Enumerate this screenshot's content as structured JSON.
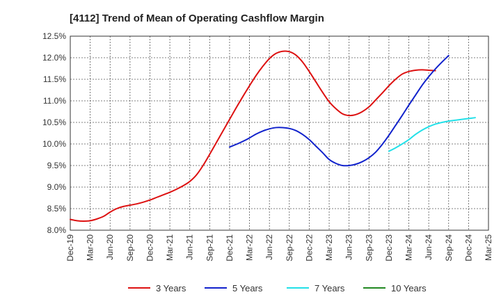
{
  "chart_data": {
    "type": "line",
    "title": "[4112]  Trend of Mean of Operating Cashflow Margin",
    "xlabel": "",
    "ylabel": "",
    "x_ticks": [
      "Dec-19",
      "Mar-20",
      "Jun-20",
      "Sep-20",
      "Dec-20",
      "Mar-21",
      "Jun-21",
      "Sep-21",
      "Dec-21",
      "Mar-22",
      "Jun-22",
      "Sep-22",
      "Dec-22",
      "Mar-23",
      "Jun-23",
      "Sep-23",
      "Dec-23",
      "Mar-24",
      "Jun-24",
      "Sep-24",
      "Dec-24",
      "Mar-25"
    ],
    "y_ticks": [
      "8.0%",
      "8.5%",
      "9.0%",
      "9.5%",
      "10.0%",
      "10.5%",
      "11.0%",
      "11.5%",
      "12.0%",
      "12.5%"
    ],
    "ylim": [
      8.0,
      12.5
    ],
    "grid": true,
    "legend_position": "bottom",
    "series": [
      {
        "name": "3 Years",
        "color": "#dd1111",
        "points": [
          [
            "Dec-19",
            8.25
          ],
          [
            "Jan-20",
            8.22
          ],
          [
            "Feb-20",
            8.21
          ],
          [
            "Mar-20",
            8.22
          ],
          [
            "Apr-20",
            8.26
          ],
          [
            "May-20",
            8.32
          ],
          [
            "Jun-20",
            8.42
          ],
          [
            "Jul-20",
            8.5
          ],
          [
            "Aug-20",
            8.55
          ],
          [
            "Sep-20",
            8.58
          ],
          [
            "Oct-20",
            8.61
          ],
          [
            "Nov-20",
            8.65
          ],
          [
            "Dec-20",
            8.7
          ],
          [
            "Jan-21",
            8.76
          ],
          [
            "Feb-21",
            8.82
          ],
          [
            "Mar-21",
            8.88
          ],
          [
            "Apr-21",
            8.95
          ],
          [
            "May-21",
            9.03
          ],
          [
            "Jun-21",
            9.13
          ],
          [
            "Jul-21",
            9.28
          ],
          [
            "Aug-21",
            9.5
          ],
          [
            "Sep-21",
            9.76
          ],
          [
            "Oct-21",
            10.03
          ],
          [
            "Nov-21",
            10.3
          ],
          [
            "Dec-21",
            10.57
          ],
          [
            "Jan-22",
            10.84
          ],
          [
            "Feb-22",
            11.1
          ],
          [
            "Mar-22",
            11.35
          ],
          [
            "Apr-22",
            11.59
          ],
          [
            "May-22",
            11.8
          ],
          [
            "Jun-22",
            11.98
          ],
          [
            "Jul-22",
            12.1
          ],
          [
            "Aug-22",
            12.15
          ],
          [
            "Sep-22",
            12.14
          ],
          [
            "Oct-22",
            12.06
          ],
          [
            "Nov-22",
            11.9
          ],
          [
            "Dec-22",
            11.68
          ],
          [
            "Jan-23",
            11.44
          ],
          [
            "Feb-23",
            11.2
          ],
          [
            "Mar-23",
            10.98
          ],
          [
            "Apr-23",
            10.82
          ],
          [
            "May-23",
            10.7
          ],
          [
            "Jun-23",
            10.66
          ],
          [
            "Jul-23",
            10.68
          ],
          [
            "Aug-23",
            10.75
          ],
          [
            "Sep-23",
            10.86
          ],
          [
            "Oct-23",
            11.02
          ],
          [
            "Nov-23",
            11.18
          ],
          [
            "Dec-23",
            11.35
          ],
          [
            "Jan-24",
            11.5
          ],
          [
            "Feb-24",
            11.62
          ],
          [
            "Mar-24",
            11.68
          ],
          [
            "Apr-24",
            11.71
          ],
          [
            "May-24",
            11.72
          ],
          [
            "Jun-24",
            11.71
          ],
          [
            "Jul-24",
            11.7
          ]
        ]
      },
      {
        "name": "5 Years",
        "color": "#1122cc",
        "points": [
          [
            "Dec-21",
            9.93
          ],
          [
            "Jan-22",
            9.99
          ],
          [
            "Feb-22",
            10.06
          ],
          [
            "Mar-22",
            10.14
          ],
          [
            "Apr-22",
            10.23
          ],
          [
            "May-22",
            10.3
          ],
          [
            "Jun-22",
            10.35
          ],
          [
            "Jul-22",
            10.38
          ],
          [
            "Aug-22",
            10.38
          ],
          [
            "Sep-22",
            10.36
          ],
          [
            "Oct-22",
            10.31
          ],
          [
            "Nov-22",
            10.22
          ],
          [
            "Dec-22",
            10.1
          ],
          [
            "Jan-23",
            9.95
          ],
          [
            "Feb-23",
            9.8
          ],
          [
            "Mar-23",
            9.64
          ],
          [
            "Apr-23",
            9.55
          ],
          [
            "May-23",
            9.5
          ],
          [
            "Jun-23",
            9.5
          ],
          [
            "Jul-23",
            9.53
          ],
          [
            "Aug-23",
            9.59
          ],
          [
            "Sep-23",
            9.68
          ],
          [
            "Oct-23",
            9.81
          ],
          [
            "Nov-23",
            9.99
          ],
          [
            "Dec-23",
            10.2
          ],
          [
            "Jan-24",
            10.43
          ],
          [
            "Feb-24",
            10.66
          ],
          [
            "Mar-24",
            10.9
          ],
          [
            "Apr-24",
            11.13
          ],
          [
            "May-24",
            11.36
          ],
          [
            "Jun-24",
            11.56
          ],
          [
            "Jul-24",
            11.74
          ],
          [
            "Aug-24",
            11.9
          ],
          [
            "Sep-24",
            12.05
          ]
        ]
      },
      {
        "name": "7 Years",
        "color": "#22e0e8",
        "points": [
          [
            "Dec-23",
            9.83
          ],
          [
            "Jan-24",
            9.91
          ],
          [
            "Feb-24",
            10.0
          ],
          [
            "Mar-24",
            10.1
          ],
          [
            "Apr-24",
            10.22
          ],
          [
            "May-24",
            10.32
          ],
          [
            "Jun-24",
            10.4
          ],
          [
            "Jul-24",
            10.46
          ],
          [
            "Aug-24",
            10.5
          ],
          [
            "Sep-24",
            10.53
          ],
          [
            "Oct-24",
            10.55
          ],
          [
            "Nov-24",
            10.57
          ],
          [
            "Dec-24",
            10.59
          ],
          [
            "Jan-25",
            10.61
          ]
        ]
      },
      {
        "name": "10 Years",
        "color": "#228822",
        "points": []
      }
    ]
  }
}
